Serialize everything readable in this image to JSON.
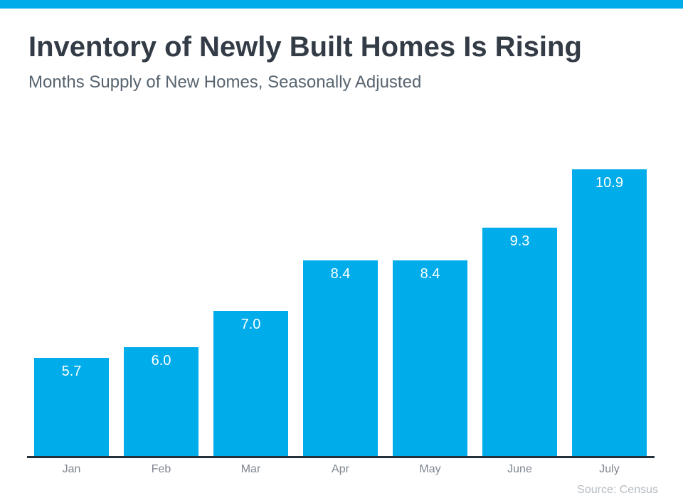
{
  "page": {
    "accent_color": "#00ACEA",
    "axis_color": "#24313D",
    "title": "Inventory of Newly Built Homes Is Rising",
    "subtitle": "Months Supply of New Homes, Seasonally Adjusted",
    "source": "Source: Census"
  },
  "chart_data": {
    "type": "bar",
    "categories": [
      "Jan",
      "Feb",
      "Mar",
      "Apr",
      "May",
      "June",
      "July"
    ],
    "values": [
      5.7,
      6.0,
      7.0,
      8.4,
      8.4,
      9.3,
      10.9
    ],
    "title": "Inventory of Newly Built Homes Is Rising",
    "subtitle": "Months Supply of New Homes, Seasonally Adjusted",
    "xlabel": "",
    "ylabel": "",
    "ylim": [
      3,
      11.7
    ],
    "grid": false,
    "legend": "none",
    "bar_color": "#00ACEA",
    "value_label_color": "#ffffff",
    "value_label_position": "inside-top",
    "value_label_format": "one-decimal",
    "source": "Source: Census"
  }
}
